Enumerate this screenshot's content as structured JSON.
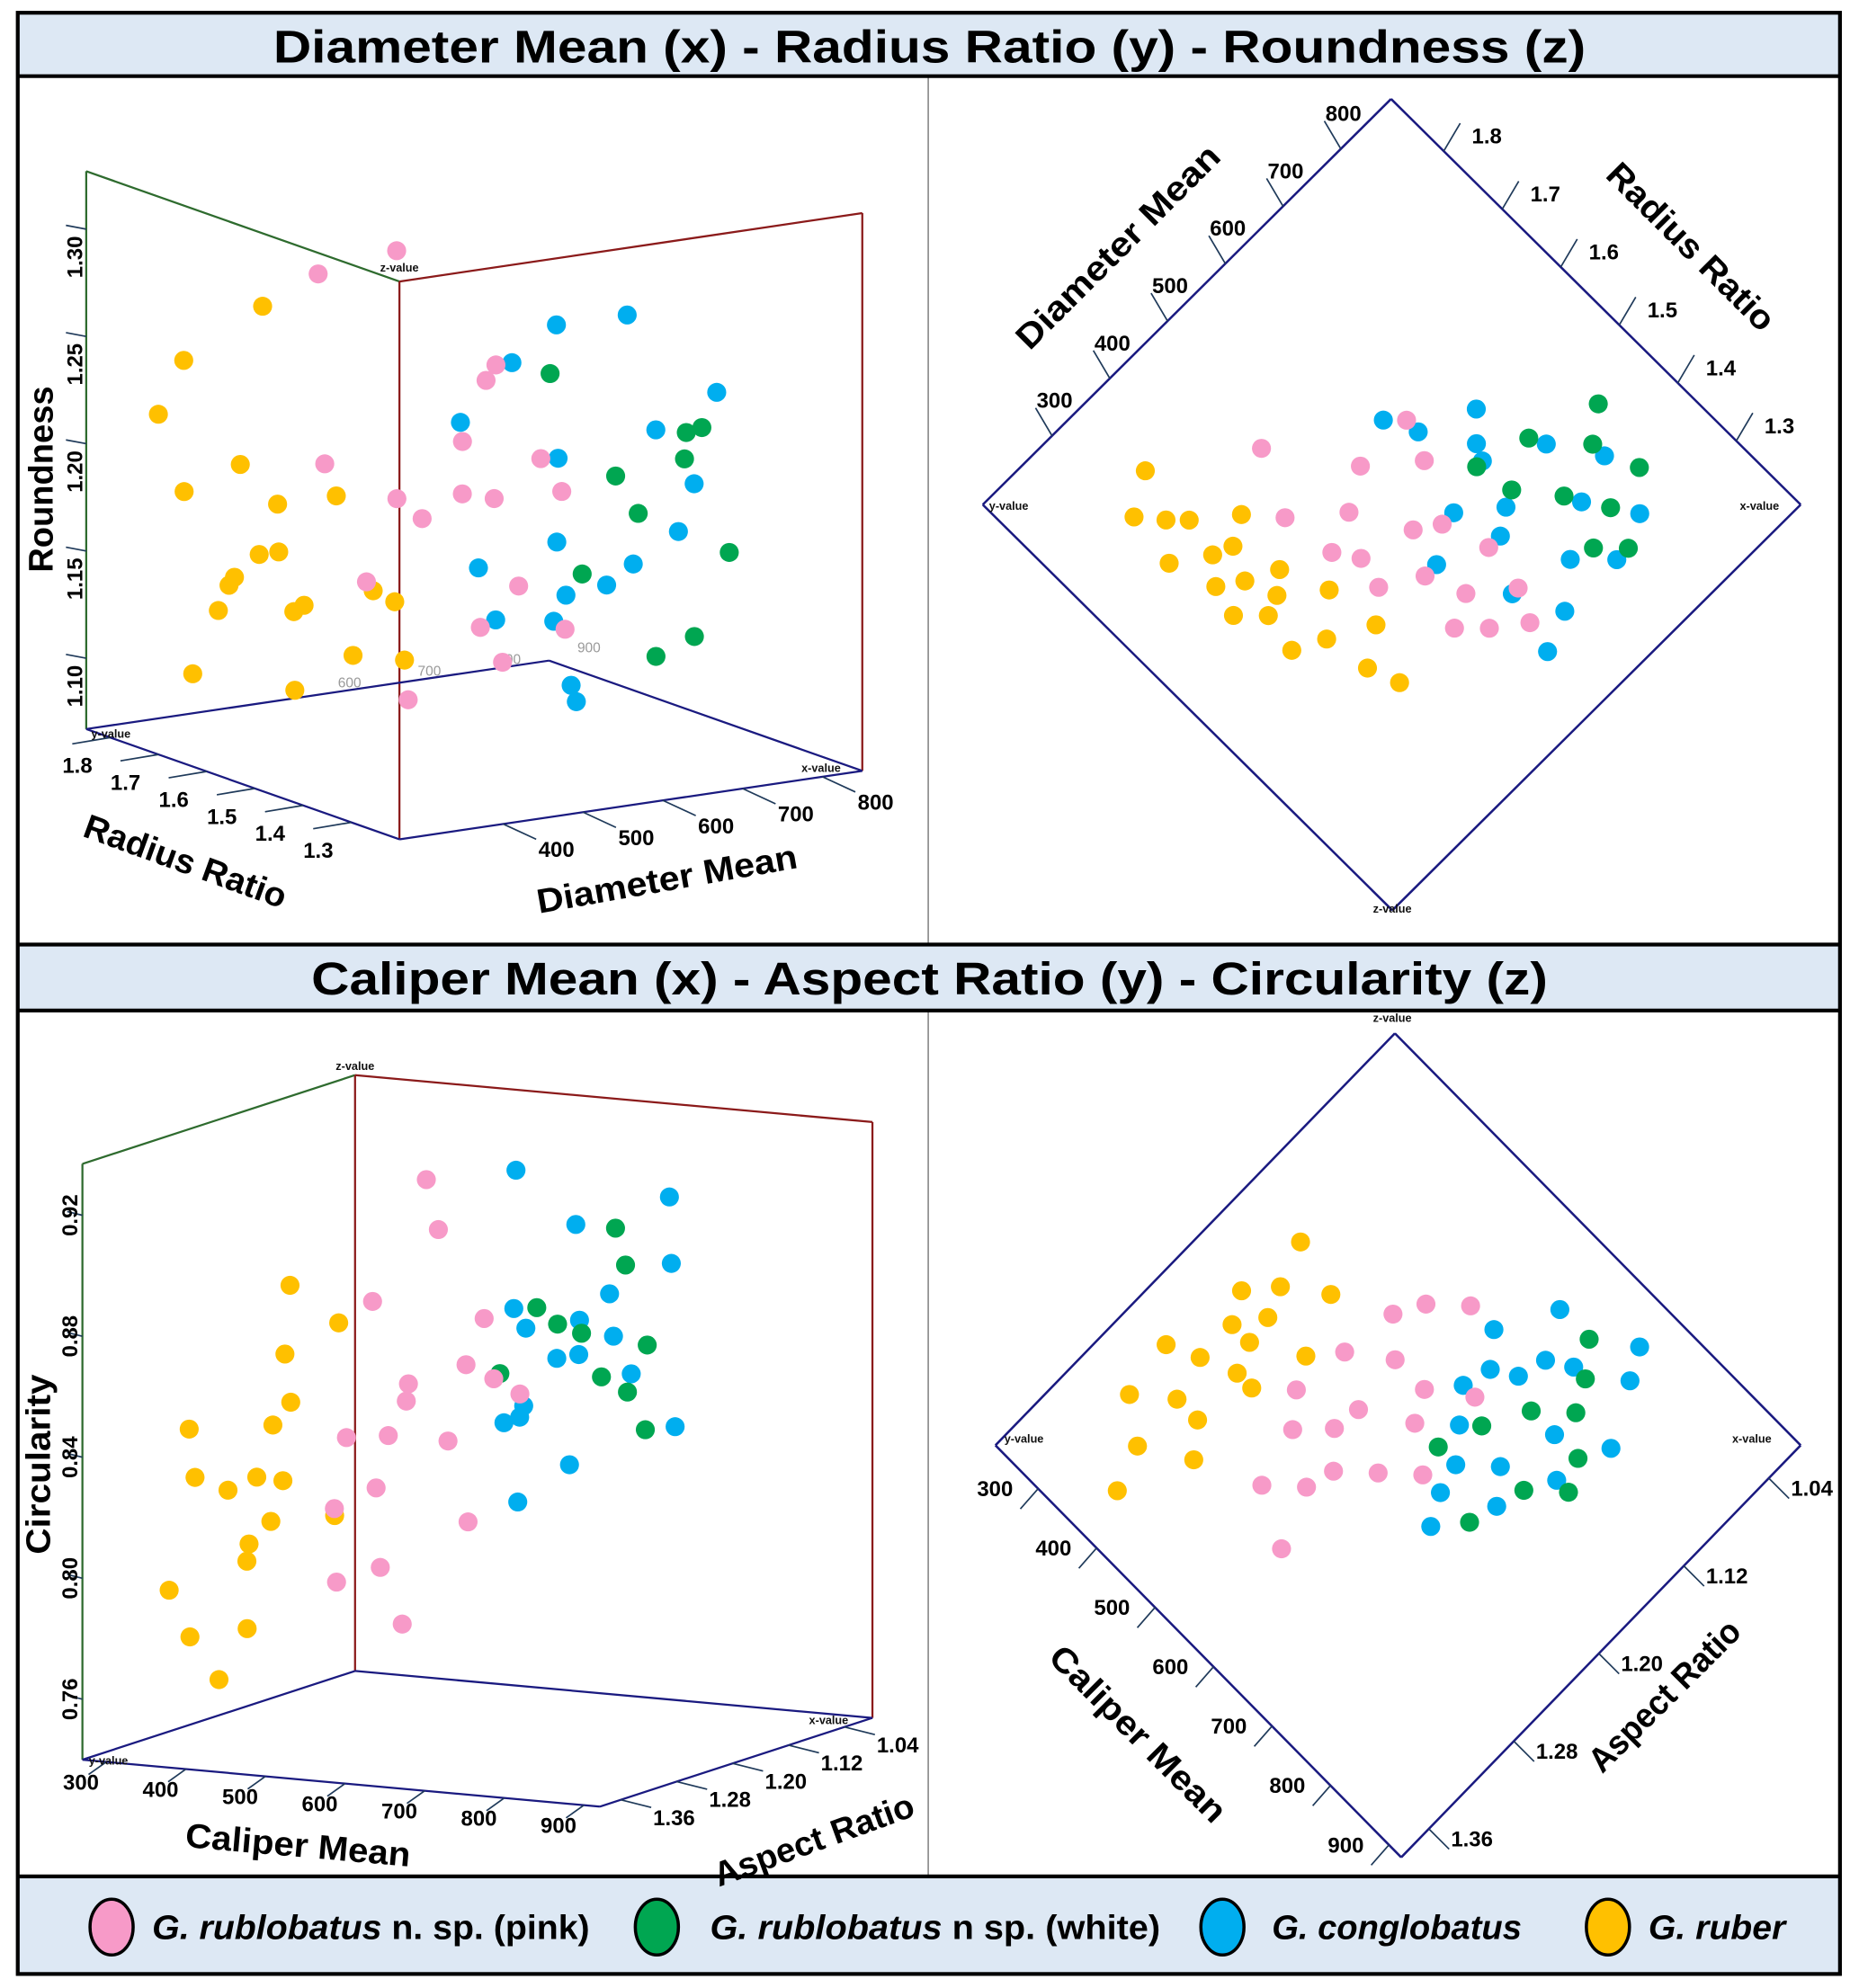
{
  "corner_labels": {
    "x": "x-value",
    "y": "y-value",
    "z": "z-value"
  },
  "colors": {
    "panel_header": "#dde8f4",
    "frame": "#000000",
    "back_wall": "#2e6b2e",
    "front_wall": "#8b1a1a",
    "floor": "#1a1a80"
  },
  "chart_data": [
    {
      "type": "scatter",
      "projection": "3d",
      "title": "Diameter Mean (x) - Radius Ratio (y) - Roundness (z)",
      "xlabel": "Diameter Mean",
      "ylabel": "Radius Ratio",
      "zlabel": "Roundness",
      "views": [
        {
          "kind": "perspective",
          "xlim": [
            270,
            850
          ],
          "ylim": [
            1.2,
            1.85
          ],
          "zlim": [
            1.067,
            1.327
          ],
          "x_ticks": [
            "400",
            "500",
            "600",
            "700",
            "800"
          ],
          "y_ticks": [
            "1.3",
            "1.4",
            "1.5",
            "1.6",
            "1.7",
            "1.8"
          ],
          "z_ticks": [
            "1.10",
            "1.15",
            "1.20",
            "1.25",
            "1.30"
          ],
          "floor_back_ticks": [
            "600",
            "700",
            "800",
            "900"
          ]
        },
        {
          "kind": "top-down",
          "xlim": [
            180,
            887
          ],
          "ylim": [
            1.19,
            1.89
          ],
          "x_ticks": [
            "300",
            "400",
            "500",
            "600",
            "700",
            "800"
          ],
          "y_ticks": [
            "1.3",
            "1.4",
            "1.5",
            "1.6",
            "1.7",
            "1.8"
          ]
        }
      ],
      "series": [
        {
          "name_italic": "G. rublobatus",
          "name_suffix": " n. sp. (pink)",
          "color": "#f79ac8",
          "points": [
            [
              460,
              1.52,
              1.19
            ],
            [
              500,
              1.45,
              1.22
            ],
            [
              540,
              1.6,
              1.17
            ],
            [
              480,
              1.38,
              1.14
            ],
            [
              560,
              1.48,
              1.25
            ],
            [
              430,
              1.62,
              1.2
            ],
            [
              520,
              1.4,
              1.12
            ],
            [
              600,
              1.55,
              1.18
            ],
            [
              470,
              1.7,
              1.28
            ],
            [
              510,
              1.35,
              1.16
            ],
            [
              580,
              1.42,
              1.21
            ],
            [
              450,
              1.48,
              1.1
            ],
            [
              620,
              1.6,
              1.23
            ],
            [
              490,
              1.57,
              1.3
            ],
            [
              550,
              1.32,
              1.14
            ],
            [
              530,
              1.5,
              1.19
            ],
            [
              440,
              1.55,
              1.15
            ],
            [
              570,
              1.36,
              1.2
            ]
          ]
        },
        {
          "name_italic": "G. rublobatus",
          "name_suffix": " n sp. (white)",
          "color": "#00a651",
          "points": [
            [
              690,
              1.4,
              1.18
            ],
            [
              720,
              1.35,
              1.22
            ],
            [
              650,
              1.45,
              1.15
            ],
            [
              760,
              1.42,
              1.2
            ],
            [
              700,
              1.3,
              1.13
            ],
            [
              640,
              1.5,
              1.24
            ],
            [
              780,
              1.36,
              1.16
            ],
            [
              710,
              1.48,
              1.19
            ],
            [
              670,
              1.33,
              1.12
            ],
            [
              800,
              1.45,
              1.21
            ]
          ]
        },
        {
          "name_italic": "G. conglobatus",
          "name_suffix": "",
          "color": "#00aeef",
          "points": [
            [
              600,
              1.42,
              1.17
            ],
            [
              650,
              1.5,
              1.2
            ],
            [
              560,
              1.36,
              1.14
            ],
            [
              700,
              1.38,
              1.22
            ],
            [
              620,
              1.58,
              1.12
            ],
            [
              680,
              1.3,
              1.18
            ],
            [
              580,
              1.48,
              1.25
            ],
            [
              720,
              1.46,
              1.15
            ],
            [
              540,
              1.28,
              1.11
            ],
            [
              640,
              1.34,
              1.28
            ],
            [
              760,
              1.4,
              1.19
            ],
            [
              600,
              1.62,
              1.21
            ],
            [
              690,
              1.55,
              1.13
            ],
            [
              520,
              1.45,
              1.16
            ],
            [
              740,
              1.32,
              1.24
            ],
            [
              630,
              1.44,
              1.1
            ],
            [
              660,
              1.52,
              1.26
            ],
            [
              590,
              1.3,
              1.16
            ]
          ]
        },
        {
          "name_italic": "G. ruber",
          "name_suffix": "",
          "color": "#ffc000",
          "points": [
            [
              310,
              1.62,
              1.15
            ],
            [
              330,
              1.55,
              1.17
            ],
            [
              345,
              1.7,
              1.13
            ],
            [
              360,
              1.48,
              1.2
            ],
            [
              300,
              1.75,
              1.22
            ],
            [
              380,
              1.58,
              1.14
            ],
            [
              395,
              1.66,
              1.18
            ],
            [
              320,
              1.5,
              1.11
            ],
            [
              350,
              1.78,
              1.24
            ],
            [
              370,
              1.42,
              1.16
            ],
            [
              405,
              1.52,
              1.12
            ],
            [
              290,
              1.68,
              1.19
            ],
            [
              340,
              1.6,
              1.28
            ],
            [
              415,
              1.45,
              1.15
            ],
            [
              325,
              1.72,
              1.1
            ],
            [
              360,
              1.64,
              1.16
            ],
            [
              385,
              1.38,
              1.13
            ],
            [
              300,
              1.58,
              1.21
            ],
            [
              335,
              1.65,
              1.15
            ],
            [
              355,
              1.56,
              1.14
            ]
          ]
        }
      ]
    },
    {
      "type": "scatter",
      "projection": "3d",
      "title": "Caliper Mean (x) - Aspect Ratio (y) - Circularity (z)",
      "xlabel": "Caliper Mean",
      "ylabel": "Aspect Ratio",
      "zlabel": "Circularity",
      "views": [
        {
          "kind": "perspective",
          "xlim": [
            270,
            920
          ],
          "ylim": [
            1.0,
            1.39
          ],
          "zlim": [
            0.74,
            0.937
          ],
          "x_ticks": [
            "300",
            "400",
            "500",
            "600",
            "700",
            "800",
            "900"
          ],
          "y_ticks": [
            "1.04",
            "1.12",
            "1.20",
            "1.28",
            "1.36"
          ],
          "z_ticks": [
            "0.76",
            "0.80",
            "0.84",
            "0.88",
            "0.92"
          ]
        },
        {
          "kind": "top-down",
          "xlim": [
            227,
            921
          ],
          "ylim": [
            1.01,
            1.386
          ],
          "x_ticks": [
            "300",
            "400",
            "500",
            "600",
            "700",
            "800",
            "900"
          ],
          "y_ticks": [
            "1.04",
            "1.12",
            "1.20",
            "1.28",
            "1.36"
          ]
        }
      ],
      "series": [
        {
          "color": "#f79ac8",
          "points": [
            [
              510,
              1.2,
              0.85
            ],
            [
              470,
              1.24,
              0.84
            ],
            [
              550,
              1.16,
              0.86
            ],
            [
              490,
              1.28,
              0.82
            ],
            [
              580,
              1.22,
              0.84
            ],
            [
              450,
              1.18,
              0.88
            ],
            [
              530,
              1.26,
              0.8
            ],
            [
              600,
              1.14,
              0.85
            ],
            [
              480,
              1.12,
              0.9
            ],
            [
              560,
              1.3,
              0.83
            ],
            [
              520,
              1.1,
              0.87
            ],
            [
              440,
              1.22,
              0.79
            ],
            [
              620,
              1.2,
              0.86
            ],
            [
              500,
              1.16,
              0.92
            ],
            [
              540,
              1.24,
              0.78
            ],
            [
              460,
              1.14,
              0.85
            ],
            [
              505,
              1.22,
              0.84
            ],
            [
              570,
              1.18,
              0.81
            ]
          ]
        },
        {
          "color": "#00a651",
          "points": [
            [
              660,
              1.12,
              0.87
            ],
            [
              700,
              1.1,
              0.85
            ],
            [
              630,
              1.15,
              0.88
            ],
            [
              720,
              1.16,
              0.86
            ],
            [
              680,
              1.08,
              0.89
            ],
            [
              740,
              1.12,
              0.84
            ],
            [
              610,
              1.18,
              0.86
            ],
            [
              700,
              1.2,
              0.88
            ],
            [
              650,
              1.06,
              0.9
            ],
            [
              760,
              1.14,
              0.87
            ]
          ]
        },
        {
          "color": "#00aeef",
          "points": [
            [
              620,
              1.11,
              0.86
            ],
            [
              660,
              1.08,
              0.88
            ],
            [
              580,
              1.14,
              0.84
            ],
            [
              700,
              1.12,
              0.87
            ],
            [
              640,
              1.18,
              0.85
            ],
            [
              720,
              1.06,
              0.89
            ],
            [
              600,
              1.06,
              0.9
            ],
            [
              680,
              1.16,
              0.83
            ],
            [
              560,
              1.1,
              0.92
            ],
            [
              740,
              1.14,
              0.86
            ],
            [
              650,
              1.2,
              0.82
            ],
            [
              700,
              1.04,
              0.91
            ],
            [
              610,
              1.16,
              0.88
            ],
            [
              760,
              1.1,
              0.84
            ],
            [
              590,
              1.12,
              0.87
            ],
            [
              670,
              1.22,
              0.85
            ],
            [
              630,
              1.09,
              0.86
            ],
            [
              710,
              1.18,
              0.88
            ]
          ]
        },
        {
          "color": "#ffc000",
          "points": [
            [
              330,
              1.25,
              0.82
            ],
            [
              300,
              1.3,
              0.79
            ],
            [
              360,
              1.22,
              0.84
            ],
            [
              340,
              1.18,
              0.86
            ],
            [
              380,
              1.28,
              0.8
            ],
            [
              310,
              1.2,
              0.77
            ],
            [
              350,
              1.32,
              0.83
            ],
            [
              400,
              1.24,
              0.85
            ],
            [
              320,
              1.15,
              0.88
            ],
            [
              370,
              1.35,
              0.78
            ],
            [
              420,
              1.2,
              0.81
            ],
            [
              290,
              1.26,
              0.84
            ],
            [
              390,
              1.16,
              0.87
            ],
            [
              345,
              1.28,
              0.76
            ],
            [
              410,
              1.3,
              0.83
            ],
            [
              330,
              1.22,
              0.8
            ],
            [
              355,
              1.2,
              0.82
            ],
            [
              375,
              1.24,
              0.81
            ]
          ]
        }
      ]
    }
  ]
}
